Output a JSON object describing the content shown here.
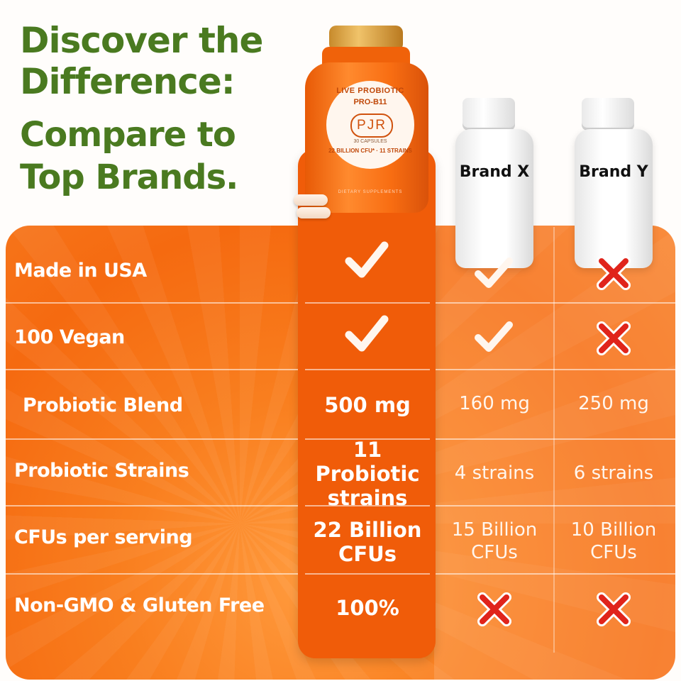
{
  "headline": {
    "line1": "Discover the",
    "line2": "Difference:",
    "line3": "Compare to",
    "line4": "Top Brands."
  },
  "products": {
    "main": {
      "label_top": "LIVE PROBIOTIC",
      "label_sub": "PRO-B11",
      "logo": "PJR",
      "capsules": "30 CAPSULES",
      "cfu": "22 BILLION CFU* · 11 STRAINS",
      "footer": "DIETARY SUPPLEMENTS"
    },
    "brand_x": "Brand X",
    "brand_y": "Brand Y"
  },
  "rows": [
    {
      "label": "Made in USA",
      "main_icon": "check-icon",
      "x_icon": "check-icon",
      "y_icon": "cross-icon"
    },
    {
      "label": "100 Vegan",
      "main_icon": "check-icon",
      "x_icon": "check-icon",
      "y_icon": "cross-icon"
    },
    {
      "label": "Probiotic Blend",
      "main": "500 mg",
      "x": "160 mg",
      "y": "250 mg"
    },
    {
      "label": "Probiotic Strains",
      "main_l1": "11 Probiotic",
      "main_l2": "strains",
      "x": "4 strains",
      "y": "6 strains"
    },
    {
      "label": "CFUs per serving",
      "main_l1": "22 Billion",
      "main_l2": "CFUs",
      "x_l1": "15 Billion",
      "x_l2": "CFUs",
      "y_l1": "10 Billion",
      "y_l2": "CFUs"
    },
    {
      "label": "Non-GMO & Gluten Free",
      "main": "100%",
      "x_icon": "cross-icon",
      "y_icon": "cross-icon"
    }
  ],
  "colors": {
    "headline": "#4a7a20",
    "panel": "#f97f1f",
    "highlight_column": "#f05c09",
    "cross": "#e0241b",
    "check": "#fff6ee"
  }
}
